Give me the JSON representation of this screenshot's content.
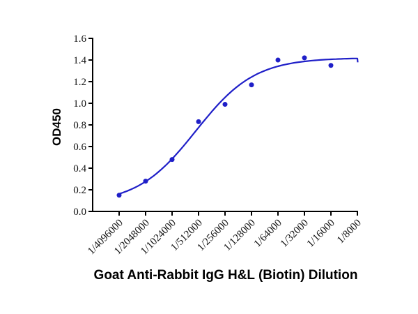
{
  "chart_data": {
    "type": "scatter",
    "title": "",
    "xlabel": "Goat Anti-Rabbit IgG H&L (Biotin) Dilution",
    "ylabel": "OD450",
    "categories": [
      "1/4096000",
      "1/2048000",
      "1/1024000",
      "1/512000",
      "1/256000",
      "1/128000",
      "1/64000",
      "1/32000",
      "1/16000",
      "1/8000"
    ],
    "values": [
      0.15,
      0.28,
      0.48,
      0.83,
      0.99,
      1.17,
      1.4,
      1.42,
      1.35
    ],
    "values_note": "data points plotted at the first 9 dilution categories; fitted curve extends to 1/8000",
    "yticks": [
      "0.0",
      "0.2",
      "0.4",
      "0.6",
      "0.8",
      "1.0",
      "1.2",
      "1.4",
      "1.6"
    ],
    "ylim": [
      0,
      1.6
    ],
    "ytick_step": 0.2,
    "grid": false,
    "legend": null,
    "curve_fit": {
      "model": "4PL logistic over log2 dilution index",
      "bottom": 0.07,
      "top": 1.42,
      "midpoint_index": 2.9,
      "slope": 0.9,
      "x_index_range": [
        0,
        9
      ]
    },
    "line_color": "#1f1fc8",
    "marker_color": "#1f1fc8",
    "axis_color": "#000000",
    "background_color": "#ffffff"
  }
}
